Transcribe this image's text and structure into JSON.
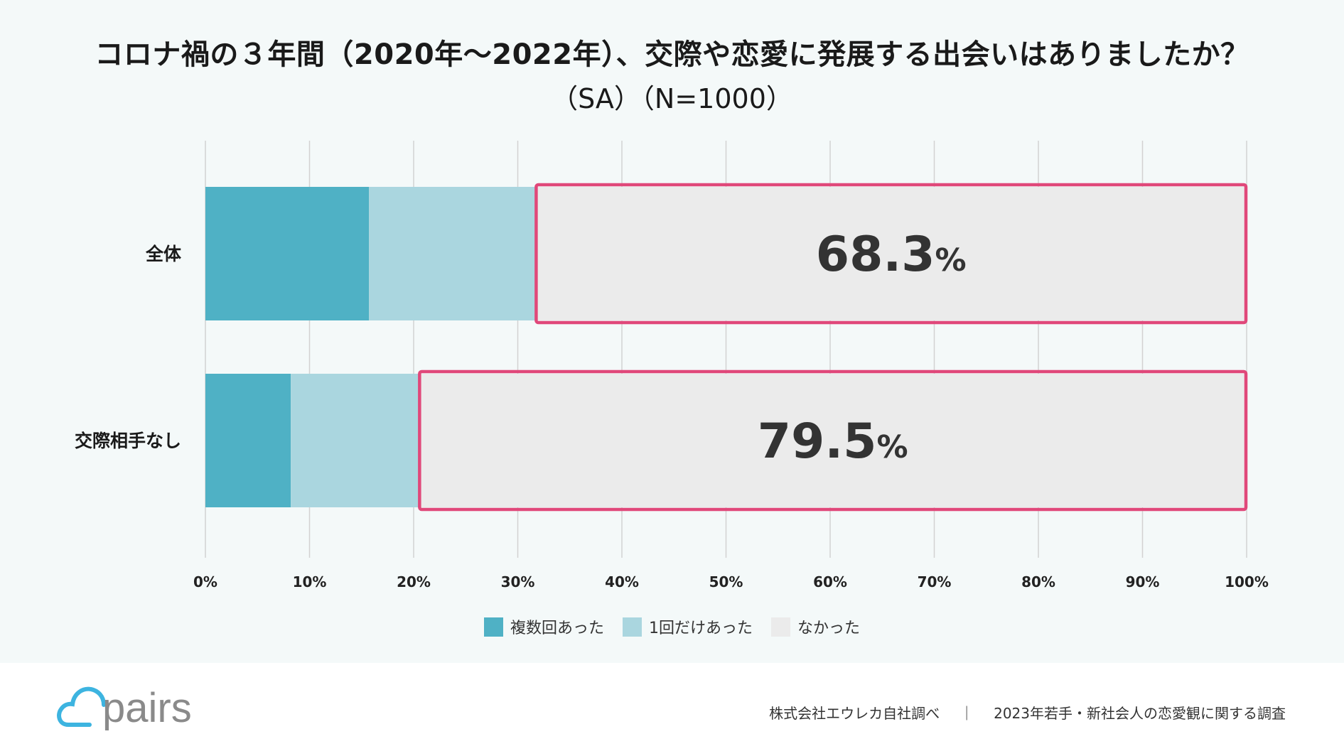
{
  "title": "コロナ禍の３年間（2020年～2022年）、交際や恋愛に発展する出会いはありましたか？",
  "subtitle": "（SA）（N=1000）",
  "colors": {
    "multiple": "#4fb1c5",
    "once": "#aad6df",
    "none": "#ebebeb",
    "highlight": "#e0487a",
    "grid": "#d2d2d2"
  },
  "chart_data": {
    "type": "bar",
    "orientation": "horizontal",
    "stacked": true,
    "categories": [
      "全体",
      "交際相手なし"
    ],
    "series": [
      {
        "name": "複数回あった",
        "values": [
          15.7,
          8.2
        ]
      },
      {
        "name": "1回だけあった",
        "values": [
          16.0,
          12.3
        ]
      },
      {
        "name": "なかった",
        "values": [
          68.3,
          79.5
        ]
      }
    ],
    "highlight_labels": [
      "68.3",
      "79.5"
    ],
    "highlight_unit": "%",
    "xlim": [
      0,
      100
    ],
    "xticks": [
      "0%",
      "10%",
      "20%",
      "30%",
      "40%",
      "50%",
      "60%",
      "70%",
      "80%",
      "90%",
      "100%"
    ],
    "legend_position": "bottom"
  },
  "legend": [
    "複数回あった",
    "1回だけあった",
    "なかった"
  ],
  "footer": {
    "logo_text": "pairs",
    "source": "株式会社エウレカ自社調べ",
    "separator": "｜",
    "survey": "2023年若手・新社会人の恋愛観に関する調査"
  }
}
